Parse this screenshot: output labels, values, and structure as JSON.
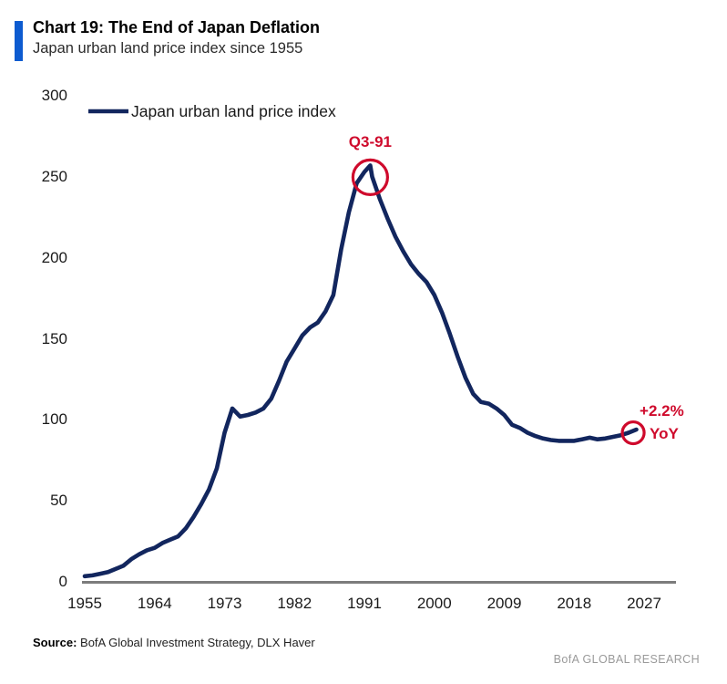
{
  "header": {
    "title": "Chart 19: The End of Japan Deflation",
    "subtitle": "Japan urban land price index since 1955"
  },
  "legend": {
    "label": "Japan urban land price index"
  },
  "footer": {
    "source_prefix": "Source:",
    "source_rest": " BofA Global Investment Strategy, DLX Haver",
    "brand": "BofA GLOBAL RESEARCH"
  },
  "colors": {
    "line": "#12265e",
    "accent_red": "#cf0a2c",
    "title_bar_blue": "#0d5bd0",
    "axis_gray": "#7c7c7c",
    "brand_gray": "#9a9a9a"
  },
  "chart_data": {
    "type": "line",
    "title": "Chart 19: The End of Japan Deflation",
    "subtitle": "Japan urban land price index since 1955",
    "xlabel": "",
    "ylabel": "",
    "grid": false,
    "legend_position": "top-left",
    "xlim": [
      1955,
      2027
    ],
    "ylim": [
      0,
      300
    ],
    "x_ticks": [
      1955,
      1964,
      1973,
      1982,
      1991,
      2000,
      2009,
      2018,
      2027
    ],
    "y_ticks": [
      0,
      50,
      100,
      150,
      200,
      250,
      300
    ],
    "series": [
      {
        "name": "Japan urban land price index",
        "x": [
          1955,
          1956,
          1957,
          1958,
          1959,
          1960,
          1961,
          1962,
          1963,
          1964,
          1965,
          1966,
          1967,
          1968,
          1969,
          1970,
          1971,
          1972,
          1973,
          1974,
          1975,
          1976,
          1977,
          1978,
          1979,
          1980,
          1981,
          1982,
          1983,
          1984,
          1985,
          1986,
          1987,
          1988,
          1989,
          1990,
          1991,
          1991.75,
          1992,
          1993,
          1994,
          1995,
          1996,
          1997,
          1998,
          1999,
          2000,
          2001,
          2002,
          2003,
          2004,
          2005,
          2006,
          2007,
          2008,
          2009,
          2010,
          2011,
          2012,
          2013,
          2014,
          2015,
          2016,
          2017,
          2018,
          2019,
          2020,
          2021,
          2022,
          2023,
          2024,
          2025,
          2026
        ],
        "values": [
          3.5,
          4,
          5,
          6,
          8,
          10,
          14,
          17,
          19.5,
          21,
          24,
          26,
          28,
          33,
          40,
          48,
          57,
          70,
          92,
          107,
          102,
          103,
          104.5,
          107,
          113,
          124,
          136,
          144,
          152,
          157,
          160,
          167,
          177,
          205,
          228,
          246,
          253,
          257,
          250,
          236,
          224,
          213,
          204,
          196,
          190,
          185,
          177,
          166,
          153,
          139,
          126,
          116,
          111,
          110,
          107,
          103,
          97,
          95,
          92,
          90,
          88.5,
          87.5,
          87,
          87,
          87,
          88,
          89,
          88,
          88.5,
          89.5,
          90.5,
          92,
          94
        ]
      }
    ],
    "annotations": [
      {
        "id": "peak",
        "label": "Q3-91",
        "x_year": 1991.75,
        "y_value": 257
      },
      {
        "id": "latest",
        "line1": "+2.2%",
        "line2": "YoY",
        "x_year": 2025.6,
        "y_value": 92
      }
    ]
  }
}
